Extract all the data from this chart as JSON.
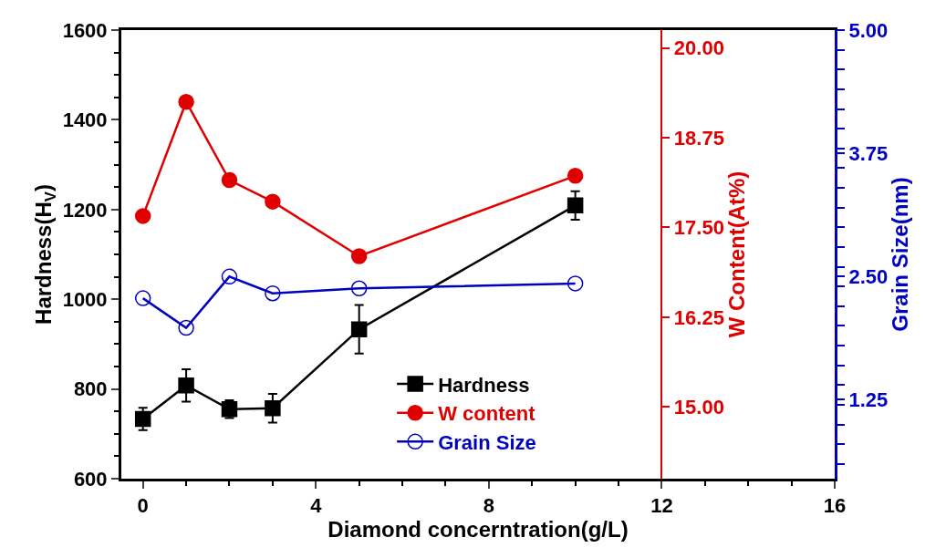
{
  "chart_data": {
    "type": "line",
    "xlabel": "Diamond concerntration(g/L)",
    "ylabel": "Hardness(H$_{V}$)",
    "y2label": "W Content(At%)",
    "y3label": "Grain Size(nm)",
    "x": [
      0,
      1,
      2,
      3,
      5,
      10
    ],
    "series": [
      {
        "name": "Hardness",
        "color": "#000000",
        "marker": "square",
        "values": [
          733,
          808,
          755,
          757,
          933,
          1209
        ],
        "errors": [
          25,
          36,
          20,
          32,
          54,
          32
        ]
      },
      {
        "name": "W content",
        "color": "#e00000",
        "marker": "circle",
        "axis": "y2",
        "values": [
          17.66,
          19.25,
          18.16,
          17.86,
          17.1,
          18.22
        ]
      },
      {
        "name": "Grain Size",
        "color": "#0000c0",
        "marker": "circle-open",
        "axis": "y3",
        "values": [
          2.28,
          1.98,
          2.5,
          2.33,
          2.38,
          2.43
        ]
      }
    ],
    "xlim": [
      -0.5,
      16
    ],
    "xticks": [
      0,
      4,
      8,
      12,
      16
    ],
    "ylim": [
      600,
      1600
    ],
    "yticks": [
      600,
      800,
      1000,
      1200,
      1400,
      1600
    ],
    "y2lim": [
      14,
      20.25
    ],
    "y2ticks": [
      {
        "value": 15,
        "label": "15.00"
      },
      {
        "value": 16.25,
        "label": "16.25"
      },
      {
        "value": 17.5,
        "label": "17.50"
      },
      {
        "value": 18.75,
        "label": "18.75"
      },
      {
        "value": 20,
        "label": "20.00"
      }
    ],
    "y3lim": [
      0.45,
      5
    ],
    "y3ticks": [
      {
        "value": 1.25,
        "label": "1.25"
      },
      {
        "value": 2.5,
        "label": "2.50"
      },
      {
        "value": 3.75,
        "label": "3.75"
      },
      {
        "value": 5,
        "label": "5.00"
      }
    ],
    "grid": false,
    "legend": "bottom",
    "line_style": "solid"
  }
}
